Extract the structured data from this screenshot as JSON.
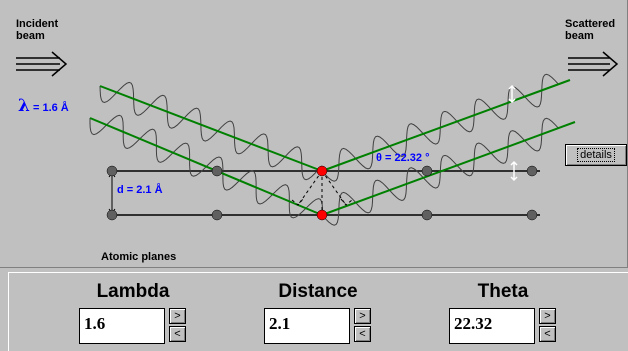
{
  "simulation": {
    "incident_label": "Incident\nbeam",
    "scattered_label": "Scattered\nbeam",
    "atomic_planes_label": "Atomic planes",
    "lambda_symbol": "λ",
    "lambda_text": "= 1.6  Å",
    "d_text": "d = 2.1  Å",
    "theta_text": "θ = 22.32 °",
    "details_label": "details",
    "colors": {
      "beam": "#008000",
      "wave": "#404040",
      "plane": "#000000",
      "atom": "#606060",
      "hit_atom": "#ff0000",
      "annotation": "#0000ff"
    }
  },
  "controls": {
    "lambda": {
      "title": "Lambda",
      "value": "1.6",
      "up": ">",
      "down": "<"
    },
    "distance": {
      "title": "Distance",
      "value": "2.1",
      "up": ">",
      "down": "<"
    },
    "theta": {
      "title": "Theta",
      "value": "22.32",
      "up": ">",
      "down": "<"
    }
  }
}
